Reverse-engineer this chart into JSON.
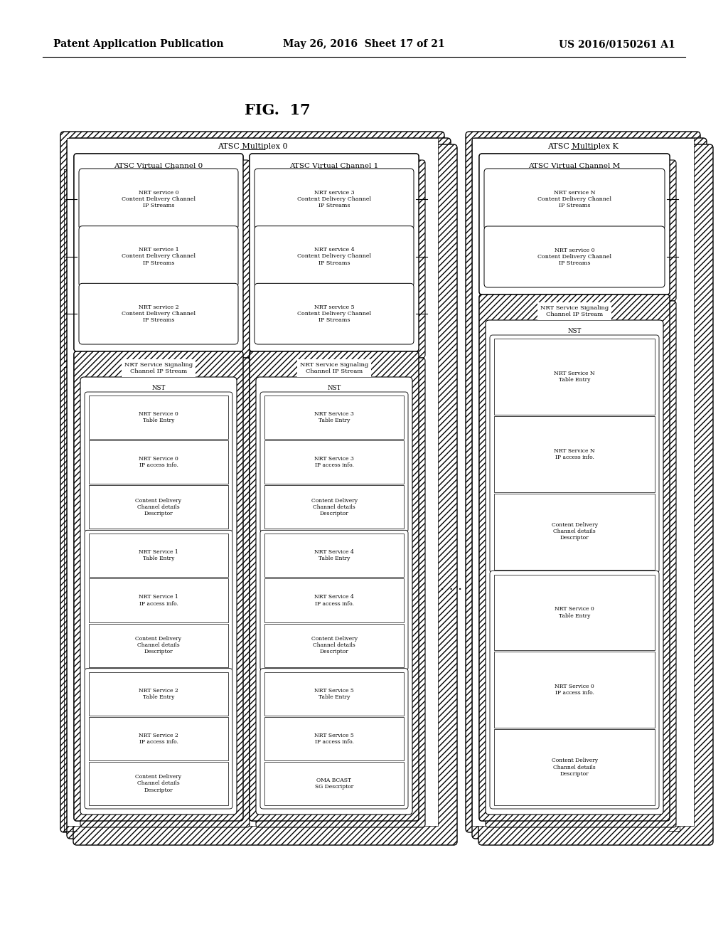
{
  "fig_label": "FIG.  17",
  "header_left": "Patent Application Publication",
  "header_mid": "May 26, 2016  Sheet 17 of 21",
  "header_right": "US 2016/0150261 A1",
  "background": "#ffffff",
  "font_size_header": 10,
  "font_size_fig": 15,
  "font_size_title": 7.5,
  "font_size_box": 6.2,
  "font_size_small": 5.5
}
